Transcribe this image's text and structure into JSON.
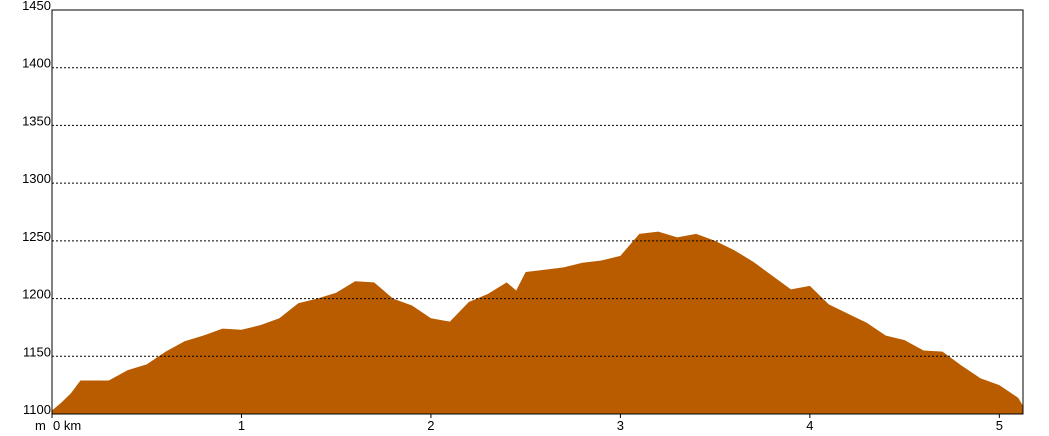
{
  "chart_data": {
    "type": "area",
    "y_label": "m",
    "x": [
      0,
      0.05,
      0.1,
      0.15,
      0.2,
      0.3,
      0.4,
      0.5,
      0.6,
      0.7,
      0.8,
      0.9,
      1.0,
      1.1,
      1.2,
      1.3,
      1.4,
      1.5,
      1.6,
      1.7,
      1.8,
      1.9,
      2.0,
      2.1,
      2.2,
      2.3,
      2.4,
      2.45,
      2.5,
      2.6,
      2.7,
      2.8,
      2.9,
      3.0,
      3.1,
      3.2,
      3.3,
      3.4,
      3.5,
      3.6,
      3.7,
      3.8,
      3.9,
      4.0,
      4.1,
      4.2,
      4.3,
      4.4,
      4.5,
      4.6,
      4.7,
      4.8,
      4.9,
      5.0,
      5.1,
      5.125
    ],
    "values": [
      1103,
      1110,
      1118,
      1129,
      1129,
      1129,
      1138,
      1143,
      1154,
      1163,
      1168,
      1174,
      1173,
      1177,
      1183,
      1196,
      1200,
      1205,
      1215,
      1214,
      1200,
      1194,
      1183,
      1180,
      1197,
      1204,
      1214,
      1207,
      1223,
      1225,
      1227,
      1231,
      1233,
      1237,
      1256,
      1258,
      1253,
      1256,
      1250,
      1242,
      1232,
      1220,
      1208,
      1211,
      1195,
      1187,
      1179,
      1168,
      1164,
      1155,
      1154,
      1142,
      1131,
      1125,
      1114,
      1107
    ],
    "color": "#b95c00",
    "xlim": [
      0,
      5.125
    ],
    "xticks": [
      {
        "value": 0,
        "label": "0 km"
      },
      1,
      2,
      3,
      4,
      5
    ],
    "ylim": [
      1100,
      1450
    ],
    "yticks": [
      1100,
      1150,
      1200,
      1250,
      1300,
      1350,
      1400,
      1450
    ],
    "grid": true
  }
}
